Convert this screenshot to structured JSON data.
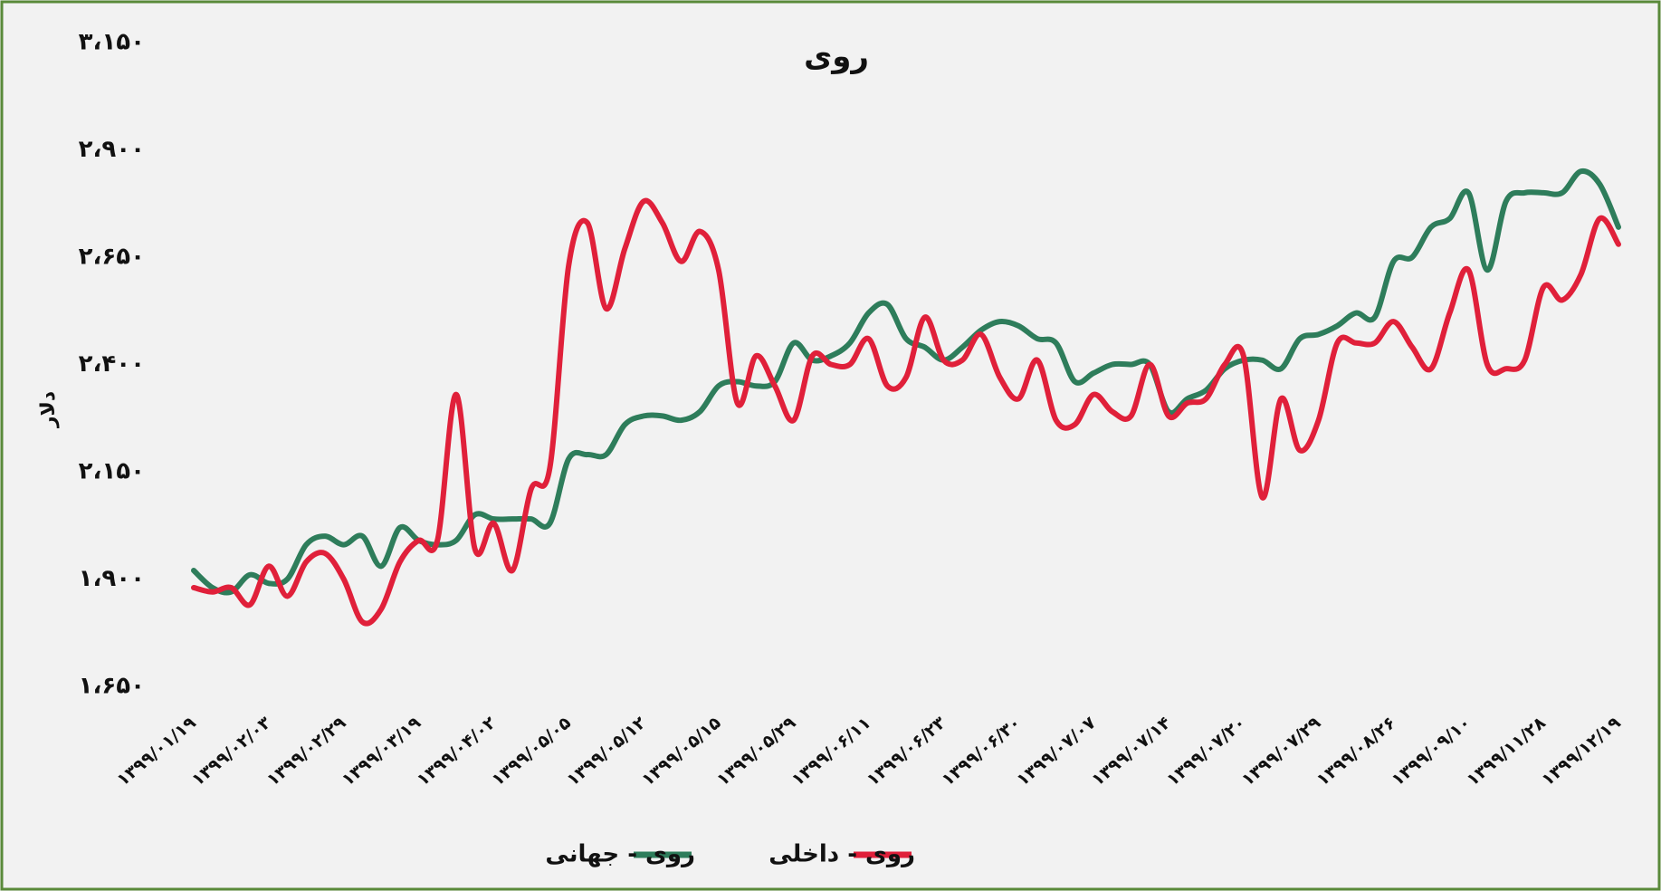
{
  "chart_data": {
    "type": "line",
    "title": "روی",
    "ylabel": "دلار",
    "categories": [
      "۱۳۹۹/۰۱/۱۹",
      null,
      null,
      null,
      "۱۳۹۹/۰۲/۰۳",
      null,
      null,
      null,
      "۱۳۹۹/۰۲/۲۹",
      null,
      null,
      null,
      "۱۳۹۹/۰۳/۱۹",
      null,
      null,
      null,
      "۱۳۹۹/۰۴/۰۲",
      null,
      null,
      null,
      "۱۳۹۹/۰۵/۰۵",
      null,
      null,
      null,
      "۱۳۹۹/۰۵/۱۲",
      null,
      null,
      null,
      "۱۳۹۹/۰۵/۱۵",
      null,
      null,
      null,
      "۱۳۹۹/۰۵/۲۹",
      null,
      null,
      null,
      "۱۳۹۹/۰۶/۱۱",
      null,
      null,
      null,
      "۱۳۹۹/۰۶/۲۳",
      null,
      null,
      null,
      "۱۳۹۹/۰۶/۳۰",
      null,
      null,
      null,
      "۱۳۹۹/۰۷/۰۷",
      null,
      null,
      null,
      "۱۳۹۹/۰۷/۱۴",
      null,
      null,
      null,
      "۱۳۹۹/۰۷/۲۰",
      null,
      null,
      null,
      "۱۳۹۹/۰۷/۲۹",
      null,
      null,
      null,
      "۱۳۹۹/۰۸/۲۶",
      null,
      null,
      null,
      "۱۳۹۹/۰۹/۱۰",
      null,
      null,
      null,
      "۱۳۹۹/۱۱/۲۸",
      null,
      null,
      null,
      "۱۳۹۹/۱۲/۱۹"
    ],
    "series": [
      {
        "name": "روی - جهانی",
        "color": "#2e7d5b",
        "values": [
          1920,
          1880,
          1870,
          1910,
          1890,
          1900,
          1980,
          2000,
          1980,
          2000,
          1930,
          2020,
          1990,
          1980,
          1990,
          2050,
          2040,
          2040,
          2040,
          2030,
          2180,
          2190,
          2190,
          2260,
          2280,
          2280,
          2270,
          2290,
          2350,
          2360,
          2350,
          2360,
          2450,
          2410,
          2420,
          2450,
          2520,
          2540,
          2460,
          2440,
          2410,
          2440,
          2480,
          2500,
          2490,
          2460,
          2450,
          2360,
          2380,
          2400,
          2400,
          2400,
          2290,
          2320,
          2340,
          2390,
          2410,
          2410,
          2390,
          2460,
          2470,
          2490,
          2520,
          2510,
          2640,
          2650,
          2720,
          2740,
          2800,
          2620,
          2780,
          2800,
          2800,
          2800,
          2850,
          2820,
          2720
        ]
      },
      {
        "name": "روی - داخلی",
        "color": "#e0203a",
        "values": [
          1880,
          1870,
          1880,
          1840,
          1930,
          1860,
          1940,
          1960,
          1900,
          1800,
          1830,
          1940,
          1990,
          1990,
          2330,
          1970,
          2030,
          1920,
          2110,
          2160,
          2630,
          2730,
          2530,
          2670,
          2780,
          2730,
          2640,
          2710,
          2620,
          2310,
          2420,
          2350,
          2270,
          2420,
          2400,
          2400,
          2460,
          2350,
          2370,
          2510,
          2410,
          2410,
          2470,
          2370,
          2320,
          2410,
          2270,
          2260,
          2330,
          2290,
          2280,
          2400,
          2280,
          2310,
          2320,
          2400,
          2420,
          2090,
          2320,
          2200,
          2270,
          2450,
          2450,
          2450,
          2500,
          2440,
          2390,
          2520,
          2620,
          2400,
          2390,
          2410,
          2580,
          2550,
          2610,
          2740,
          2680
        ]
      }
    ],
    "ylim": [
      1650,
      3150
    ],
    "yticks": [
      {
        "value": 1650,
        "label": "۱،۶۵۰"
      },
      {
        "value": 1900,
        "label": "۱،۹۰۰"
      },
      {
        "value": 2150,
        "label": "۲،۱۵۰"
      },
      {
        "value": 2400,
        "label": "۲،۴۰۰"
      },
      {
        "value": 2650,
        "label": "۲،۶۵۰"
      },
      {
        "value": 2900,
        "label": "۲،۹۰۰"
      },
      {
        "value": 3150,
        "label": "۳،۱۵۰"
      }
    ],
    "grid": false,
    "legend": "bottom"
  }
}
